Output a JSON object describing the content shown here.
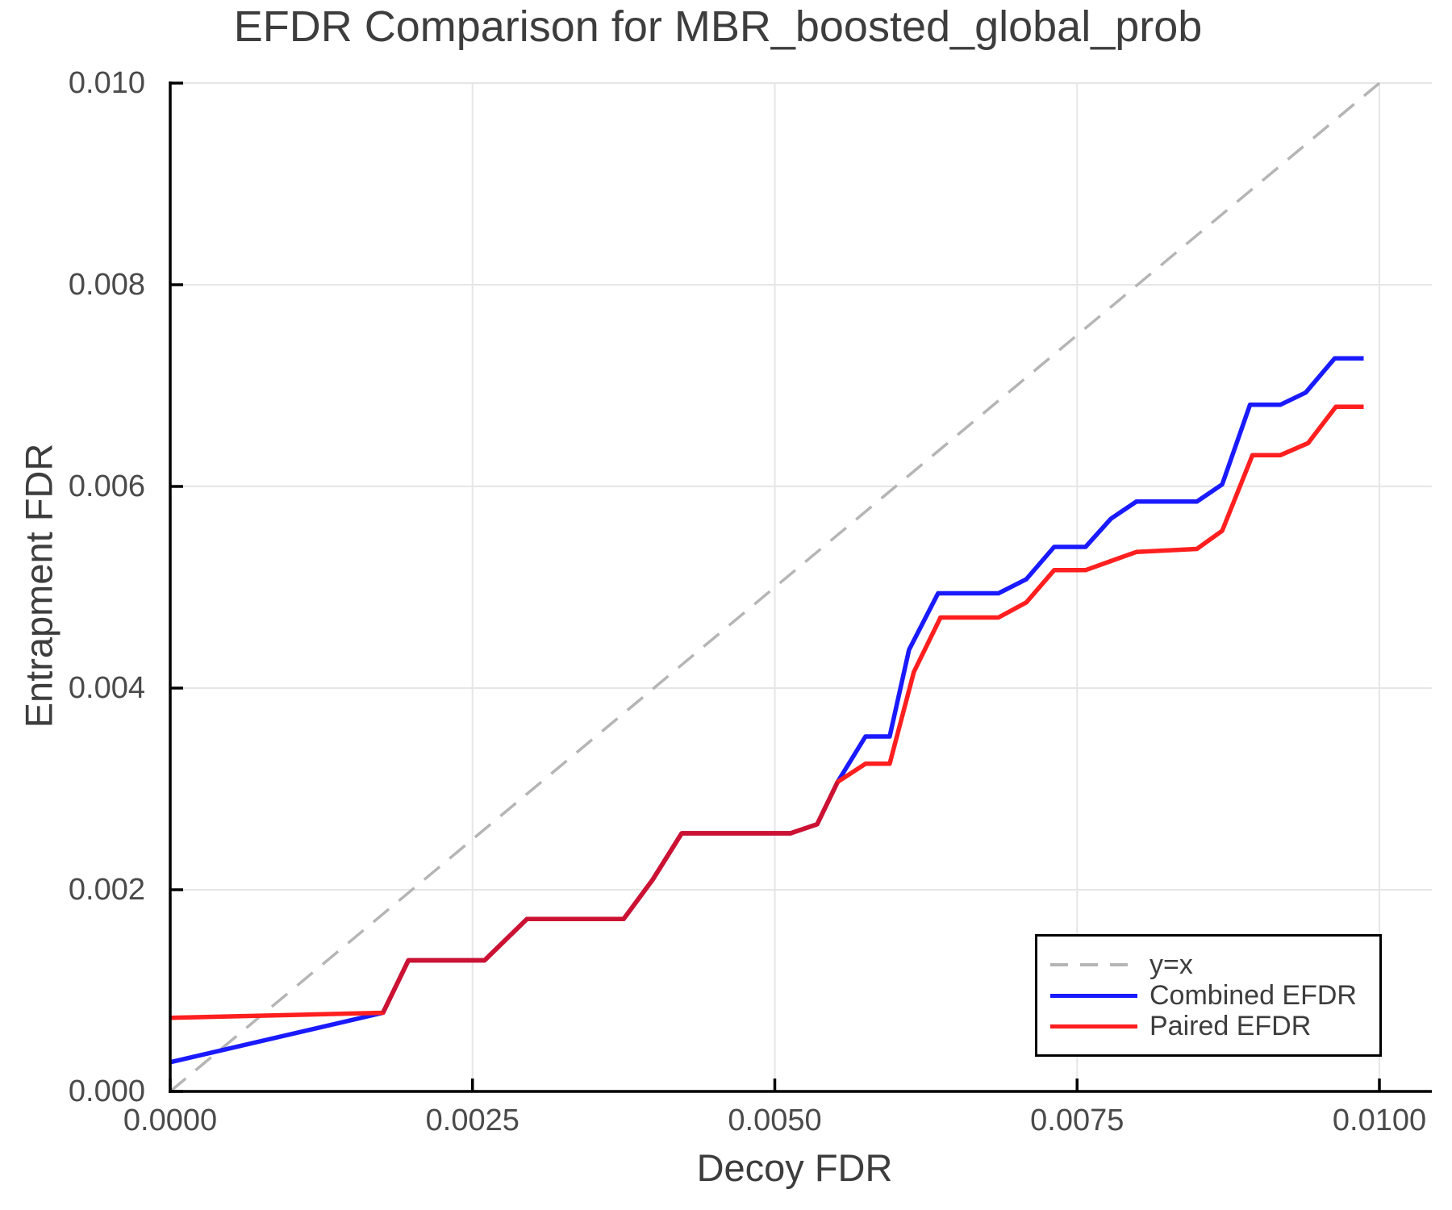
{
  "title": "EFDR Comparison for MBR_boosted_global_prob",
  "xlabel": "Decoy FDR",
  "ylabel": "Entrapment FDR",
  "colors": {
    "combined_line": "#1a1aff",
    "paired_line": "#ff1f1f",
    "overlap_line": "#cc1233",
    "reference_line": "#b5b5b5",
    "grid": "#e6e6e6",
    "axis": "#000000",
    "title_text": "#3d3d3d",
    "tick_text": "#4a4a4a"
  },
  "legend": {
    "items": [
      {
        "label": "y=x",
        "style": "dashed",
        "color": "#b5b5b5"
      },
      {
        "label": "Combined EFDR",
        "style": "solid",
        "color": "#1a1aff"
      },
      {
        "label": "Paired EFDR",
        "style": "solid",
        "color": "#ff1f1f"
      }
    ]
  },
  "chart_data": {
    "type": "line",
    "title": "EFDR Comparison for MBR_boosted_global_prob",
    "xlabel": "Decoy FDR",
    "ylabel": "Entrapment FDR",
    "xlim": [
      0.0,
      0.0104
    ],
    "ylim": [
      0.0,
      0.01
    ],
    "grid": true,
    "legend_position": "lower right",
    "x_ticks": {
      "values": [
        0.0,
        0.0025,
        0.005,
        0.0075,
        0.01
      ],
      "labels": [
        "0.0000",
        "0.0025",
        "0.0050",
        "0.0075",
        "0.0100"
      ]
    },
    "y_ticks": {
      "values": [
        0.0,
        0.002,
        0.004,
        0.006,
        0.008,
        0.01
      ],
      "labels": [
        "0.000",
        "0.002",
        "0.004",
        "0.006",
        "0.008",
        "0.010"
      ]
    },
    "reference_line": {
      "name": "y=x",
      "from": [
        0.0,
        0.0
      ],
      "to": [
        0.01,
        0.01
      ],
      "style": "dashed",
      "color": "#b5b5b5"
    },
    "series": [
      {
        "name": "Combined EFDR",
        "color": "#1a1aff",
        "points": [
          [
            0.0,
            0.00029
          ],
          [
            0.00176,
            0.00078
          ],
          [
            0.00197,
            0.0013
          ],
          [
            0.0026,
            0.0013
          ],
          [
            0.00295,
            0.00171
          ],
          [
            0.00375,
            0.00171
          ],
          [
            0.00399,
            0.0021
          ],
          [
            0.00423,
            0.00256
          ],
          [
            0.00513,
            0.00256
          ],
          [
            0.00535,
            0.00265
          ],
          [
            0.00552,
            0.00307
          ],
          [
            0.00575,
            0.00352
          ],
          [
            0.00595,
            0.00352
          ],
          [
            0.00611,
            0.00438
          ],
          [
            0.00635,
            0.00494
          ],
          [
            0.00685,
            0.00494
          ],
          [
            0.00708,
            0.00508
          ],
          [
            0.00731,
            0.0054
          ],
          [
            0.00757,
            0.0054
          ],
          [
            0.00778,
            0.00568
          ],
          [
            0.00799,
            0.00585
          ],
          [
            0.00849,
            0.00585
          ],
          [
            0.0087,
            0.00602
          ],
          [
            0.00893,
            0.00681
          ],
          [
            0.00918,
            0.00681
          ],
          [
            0.00939,
            0.00693
          ],
          [
            0.00963,
            0.00727
          ],
          [
            0.00987,
            0.00727
          ]
        ]
      },
      {
        "name": "Paired EFDR",
        "color": "#ff1f1f",
        "points": [
          [
            0.0,
            0.00073
          ],
          [
            0.00176,
            0.00078
          ],
          [
            0.00197,
            0.0013
          ],
          [
            0.0026,
            0.0013
          ],
          [
            0.00295,
            0.00171
          ],
          [
            0.00375,
            0.00171
          ],
          [
            0.00399,
            0.0021
          ],
          [
            0.00423,
            0.00256
          ],
          [
            0.00513,
            0.00256
          ],
          [
            0.00535,
            0.00265
          ],
          [
            0.00552,
            0.00307
          ],
          [
            0.00575,
            0.00325
          ],
          [
            0.00595,
            0.00325
          ],
          [
            0.00615,
            0.00416
          ],
          [
            0.00637,
            0.0047
          ],
          [
            0.00685,
            0.0047
          ],
          [
            0.00708,
            0.00485
          ],
          [
            0.00731,
            0.00517
          ],
          [
            0.00757,
            0.00517
          ],
          [
            0.00778,
            0.00526
          ],
          [
            0.00799,
            0.00535
          ],
          [
            0.00849,
            0.00538
          ],
          [
            0.0087,
            0.00556
          ],
          [
            0.00895,
            0.00631
          ],
          [
            0.00918,
            0.00631
          ],
          [
            0.00941,
            0.00643
          ],
          [
            0.00964,
            0.00679
          ],
          [
            0.00987,
            0.00679
          ]
        ]
      }
    ]
  }
}
